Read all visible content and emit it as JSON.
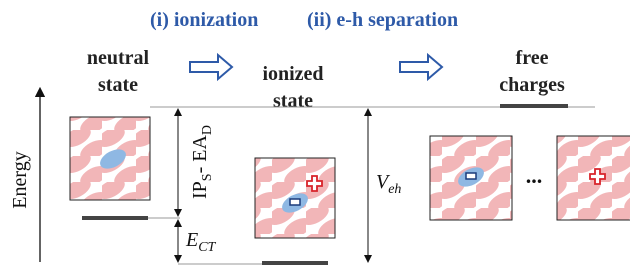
{
  "steps": [
    "(i) ionization",
    "(ii) e-h separation"
  ],
  "states": [
    {
      "line1": "neutral",
      "line2": "state"
    },
    {
      "line1": "ionized",
      "line2": "state"
    },
    {
      "line1": "free",
      "line2": "charges"
    }
  ],
  "axis_label": "Energy",
  "ip_ea": {
    "main1": "IP",
    "sub1": "S",
    "main2": "- EA",
    "sub2": "D"
  },
  "ect": {
    "main": "E",
    "sub": "CT"
  },
  "veh": {
    "main": "V",
    "sub": "eh"
  },
  "ellipsis": "..."
}
